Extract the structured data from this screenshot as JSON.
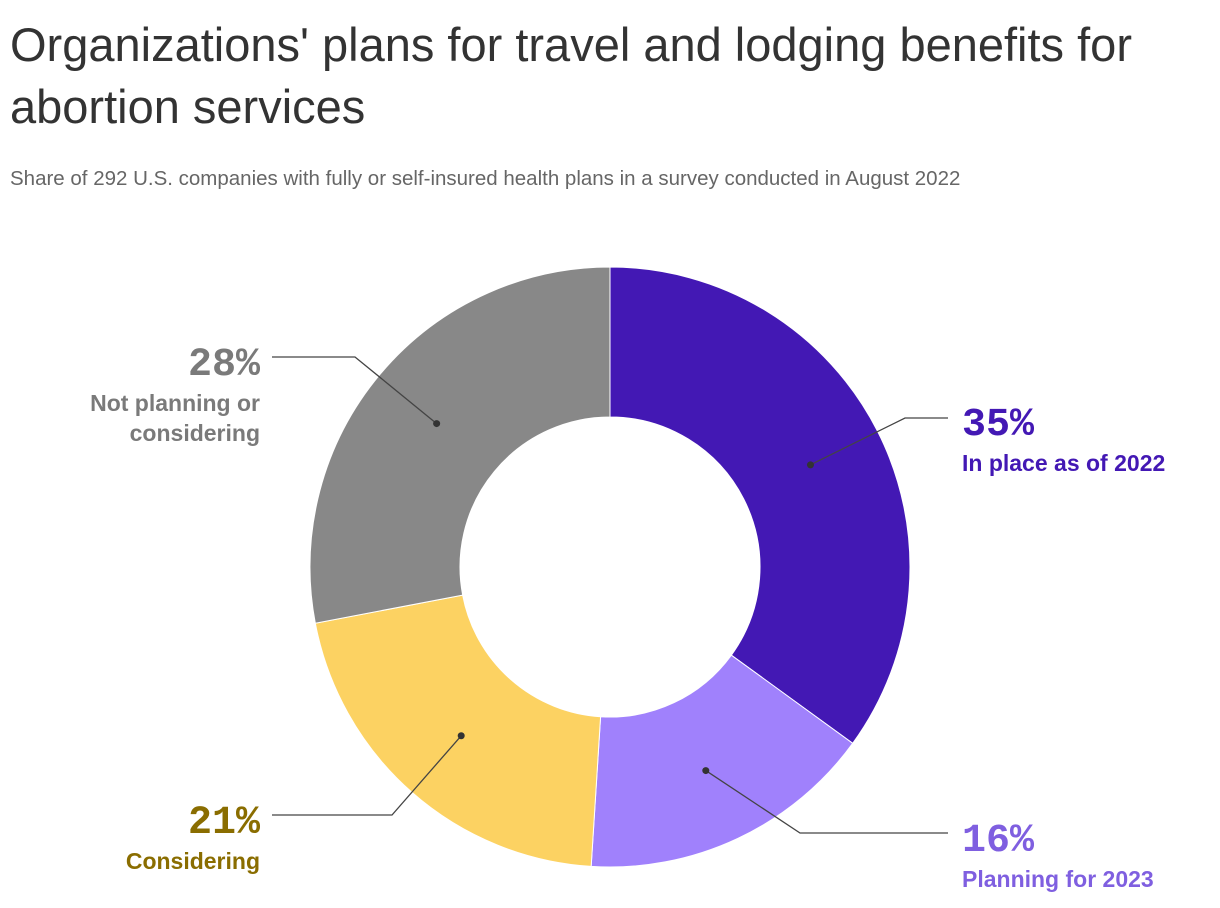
{
  "chart_data": {
    "type": "donut",
    "title": "Organizations' plans for travel and lodging benefits for abortion services",
    "subtitle": "Share of 292 U.S. companies with fully or self-insured health plans in a survey conducted in August 2022",
    "categories": [
      "In place as of 2022",
      "Planning for 2023",
      "Considering",
      "Not planning or considering"
    ],
    "values": [
      35,
      16,
      21,
      28
    ],
    "value_labels": [
      "35%",
      "16%",
      "21%",
      "28%"
    ],
    "colors": [
      "#4318b4",
      "#a081fc",
      "#fcd262",
      "#888888"
    ],
    "label_colors": [
      "#4318b4",
      "#7f5fe0",
      "#8a6d00",
      "#7a7a7a"
    ]
  }
}
